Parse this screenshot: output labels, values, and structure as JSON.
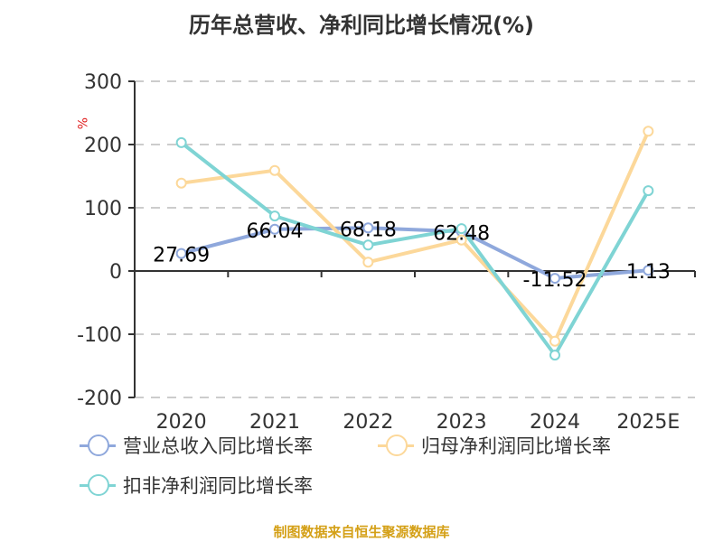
{
  "title": "历年总营收、净利同比增长情况(%)",
  "source": "制图数据来自恒生聚源数据库",
  "colors": {
    "revenue": "#8fa8dc",
    "net_profit": "#fcd89a",
    "deducted_profit": "#7fd4d4",
    "axis": "#333333",
    "unit": "#e02020",
    "source": "#d4a017"
  },
  "chart_data": {
    "type": "line",
    "title": "历年总营收、净利同比增长情况(%)",
    "xlabel": "",
    "ylabel": "%",
    "categories": [
      "2020",
      "2021",
      "2022",
      "2023",
      "2024",
      "2025E"
    ],
    "ylim": [
      -200,
      300
    ],
    "yticks": [
      300,
      200,
      100,
      0,
      -100,
      -200
    ],
    "grid": "horizontal dashed",
    "legend_position": "bottom",
    "series": [
      {
        "name": "营业总收入同比增长率",
        "values": [
          27.69,
          66.04,
          68.18,
          62.48,
          -11.52,
          1.13
        ],
        "labels": [
          "27.69",
          "66.04",
          "68.18",
          "62.48",
          "-11.52",
          "1.13"
        ]
      },
      {
        "name": "归母净利润同比增长率",
        "values": [
          139,
          159,
          14,
          49,
          -111,
          221
        ]
      },
      {
        "name": "扣非净利润同比增长率",
        "values": [
          203,
          87,
          41,
          67,
          -133,
          127
        ]
      }
    ]
  },
  "legend": [
    {
      "label": "营业总收入同比增长率"
    },
    {
      "label": "归母净利润同比增长率"
    },
    {
      "label": "扣非净利润同比增长率"
    }
  ],
  "axis": {
    "unit": "%",
    "y_labels": [
      "300",
      "200",
      "100",
      "0",
      "-100",
      "-200"
    ],
    "x_labels": [
      "2020",
      "2021",
      "2022",
      "2023",
      "2024",
      "2025E"
    ]
  }
}
